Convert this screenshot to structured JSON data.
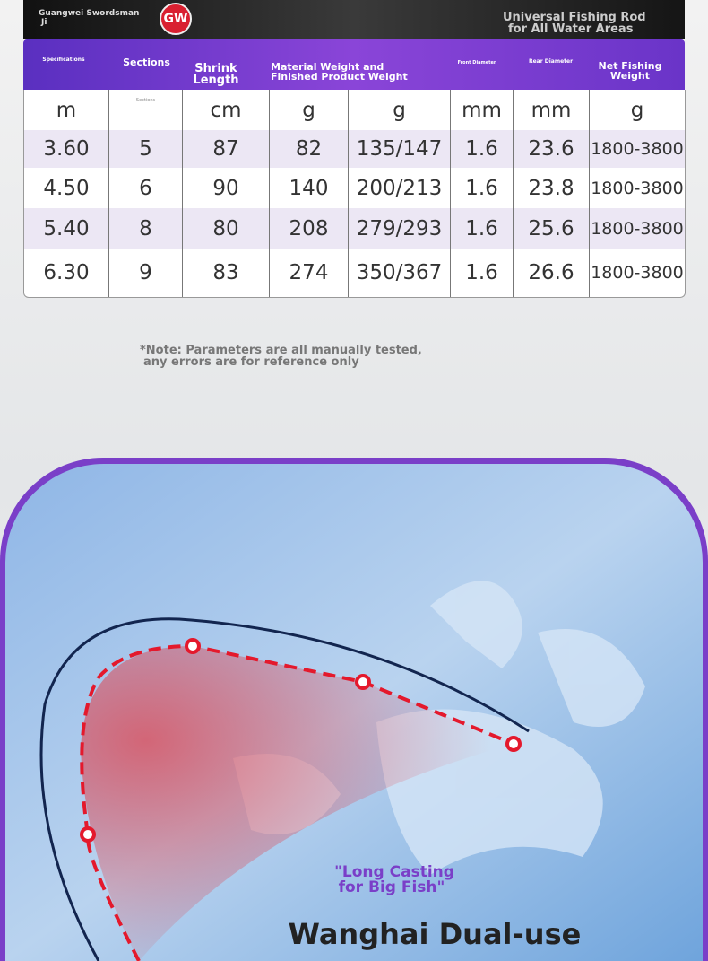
{
  "header": {
    "brand": [
      "Guangwei Swordsman",
      "Ji"
    ],
    "logo": "GW",
    "tagline": [
      "Universal Fishing Rod",
      "for All Water Areas"
    ]
  },
  "table": {
    "headers": [
      "Specifications",
      "Sections",
      "Shrink Length",
      "Material Weight and Finished Product Weight",
      "Front Diameter",
      "Rear Diameter",
      "Net Fishing Weight"
    ],
    "units": [
      "m",
      "Sections",
      "cm",
      "g",
      "g",
      "mm",
      "mm",
      "g"
    ],
    "rows": [
      [
        "3.60",
        "5",
        "87",
        "82",
        "135/147",
        "1.6",
        "23.6",
        "1800-3800"
      ],
      [
        "4.50",
        "6",
        "90",
        "140",
        "200/213",
        "1.6",
        "23.8",
        "1800-3800"
      ],
      [
        "5.40",
        "8",
        "80",
        "208",
        "279/293",
        "1.6",
        "25.6",
        "1800-3800"
      ],
      [
        "6.30",
        "9",
        "83",
        "274",
        "350/367",
        "1.6",
        "26.6",
        "1800-3800"
      ]
    ]
  },
  "note": [
    "*Note: Parameters are all manually tested,",
    "any errors are for reference only"
  ],
  "slogan": [
    "\"Long Casting",
    "for Big Fish\""
  ],
  "title": "Wanghai Dual-use"
}
